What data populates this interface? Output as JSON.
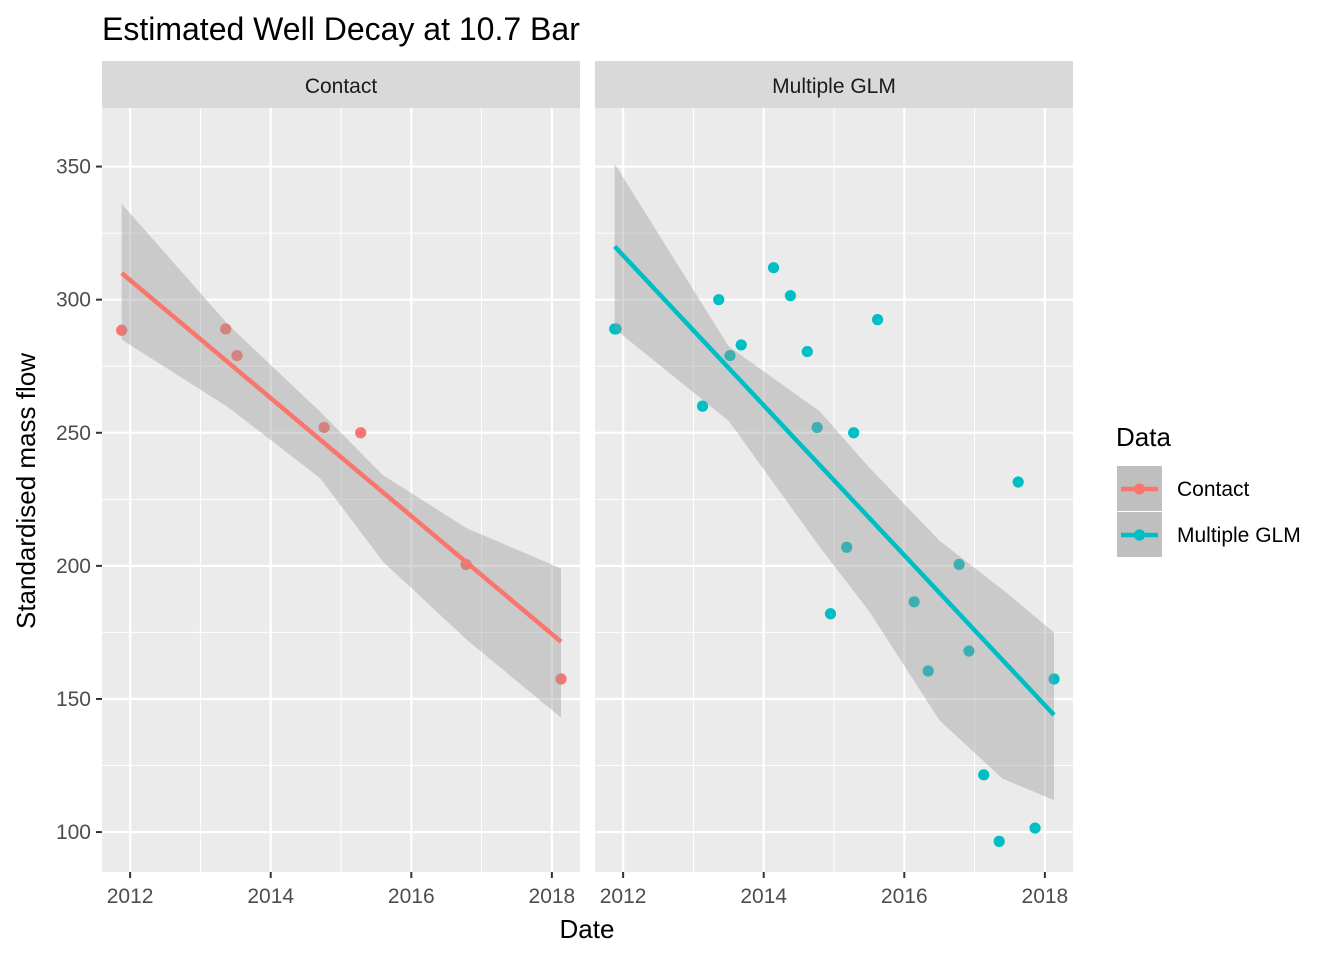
{
  "chart_data": {
    "type": "scatter",
    "title": "Estimated Well Decay at 10.7 Bar",
    "xlabel": "Date",
    "ylabel": "Standardised mass flow",
    "xlim": [
      2011.6,
      2018.4
    ],
    "ylim": [
      85,
      372
    ],
    "x_ticks": [
      2012,
      2014,
      2016,
      2018
    ],
    "x_tick_labels": [
      "2012",
      "2014",
      "2016",
      "2018"
    ],
    "y_ticks": [
      100,
      150,
      200,
      250,
      300,
      350
    ],
    "y_tick_labels": [
      "100",
      "150",
      "200",
      "250",
      "300",
      "350"
    ],
    "grid": true,
    "legend": {
      "title": "Data",
      "position": "right",
      "entries": [
        {
          "label": "Contact",
          "color": "#F8766D"
        },
        {
          "label": "Multiple GLM",
          "color": "#00BFC4"
        }
      ]
    },
    "panels": [
      {
        "strip": "Contact",
        "series": "Contact",
        "color": "#F8766D",
        "points": [
          {
            "x": 2011.88,
            "y": 288.5
          },
          {
            "x": 2013.36,
            "y": 289
          },
          {
            "x": 2013.52,
            "y": 279
          },
          {
            "x": 2014.76,
            "y": 252
          },
          {
            "x": 2015.28,
            "y": 250
          },
          {
            "x": 2016.78,
            "y": 200.5
          },
          {
            "x": 2018.13,
            "y": 157.5
          }
        ],
        "fit": {
          "x": [
            2011.88,
            2018.13
          ],
          "y": [
            310,
            171.5
          ]
        },
        "ribbon": {
          "x": [
            2011.88,
            2013.4,
            2014.7,
            2015.6,
            2016.8,
            2018.13
          ],
          "upper": [
            336,
            290.5,
            258,
            234,
            214,
            199
          ],
          "lower": [
            285,
            259.5,
            233,
            201.5,
            172,
            143
          ]
        }
      },
      {
        "strip": "Multiple GLM",
        "series": "Multiple GLM",
        "color": "#00BFC4",
        "points": [
          {
            "x": 2011.88,
            "y": 289
          },
          {
            "x": 2011.9,
            "y": 289
          },
          {
            "x": 2013.13,
            "y": 260
          },
          {
            "x": 2013.36,
            "y": 300
          },
          {
            "x": 2013.52,
            "y": 279
          },
          {
            "x": 2013.68,
            "y": 283
          },
          {
            "x": 2014.14,
            "y": 312
          },
          {
            "x": 2014.38,
            "y": 301.5
          },
          {
            "x": 2014.62,
            "y": 280.5
          },
          {
            "x": 2014.76,
            "y": 252
          },
          {
            "x": 2014.95,
            "y": 182
          },
          {
            "x": 2015.18,
            "y": 207
          },
          {
            "x": 2015.28,
            "y": 250
          },
          {
            "x": 2015.62,
            "y": 292.5
          },
          {
            "x": 2016.14,
            "y": 186.5
          },
          {
            "x": 2016.34,
            "y": 160.5
          },
          {
            "x": 2016.78,
            "y": 200.5
          },
          {
            "x": 2016.92,
            "y": 168
          },
          {
            "x": 2017.13,
            "y": 121.5
          },
          {
            "x": 2017.35,
            "y": 96.5
          },
          {
            "x": 2017.62,
            "y": 231.5
          },
          {
            "x": 2017.86,
            "y": 101.5
          },
          {
            "x": 2018.13,
            "y": 157.5
          }
        ],
        "fit": {
          "x": [
            2011.88,
            2018.13
          ],
          "y": [
            320,
            144
          ]
        },
        "ribbon": {
          "x": [
            2011.88,
            2013.5,
            2014.8,
            2015.5,
            2016.5,
            2017.4,
            2018.13
          ],
          "upper": [
            351,
            282.5,
            258,
            237,
            209.5,
            191,
            175
          ],
          "lower": [
            289,
            254.5,
            207,
            183,
            142,
            120,
            112
          ]
        }
      }
    ]
  }
}
